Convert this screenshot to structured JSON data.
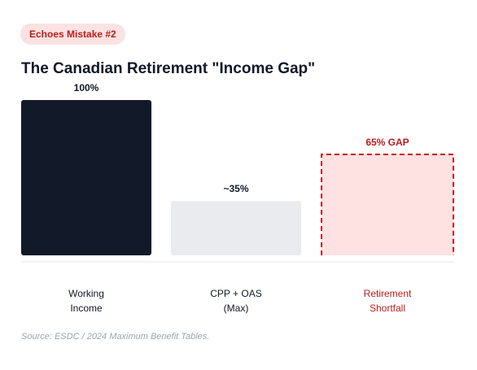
{
  "badge": "Echoes Mistake #2",
  "title": "The Canadian Retirement \"Income Gap\"",
  "source": "Source: ESDC / 2024 Maximum Benefit Tables.",
  "colors": {
    "working": "#121a29",
    "cpp": "#e9ebef",
    "gap_fill": "#fee2e2",
    "gap_stroke": "#cc1111",
    "dark_text": "#111827",
    "red_text": "#b91c1c"
  },
  "chart_data": {
    "type": "bar",
    "categories": [
      {
        "line1": "Working",
        "line2": "Income"
      },
      {
        "line1": "CPP + OAS",
        "line2": "(Max)"
      },
      {
        "line1": "Retirement",
        "line2": "Shortfall"
      }
    ],
    "values": [
      100,
      35,
      65
    ],
    "value_labels": [
      "100%",
      "~35%",
      "65% GAP"
    ],
    "ylim": [
      0,
      100
    ]
  }
}
